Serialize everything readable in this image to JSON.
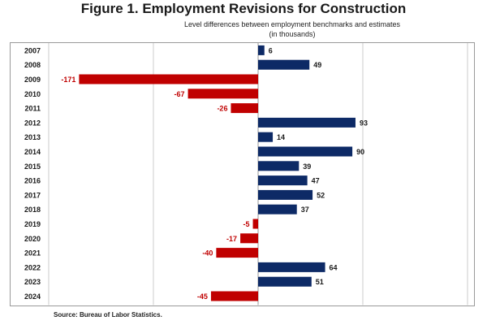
{
  "title": "Figure 1. Employment Revisions for Construction",
  "subtitle_line1": "Level differences between employment benchmarks and estimates",
  "subtitle_line2": "(in thousands)",
  "source": "Source: Bureau of Labor Statistics.",
  "colors": {
    "positive": "#0d2a66",
    "negative": "#c00000",
    "label_negative": "#c00000",
    "label_positive": "#1a1a1a",
    "grid": "#bfbfbf",
    "axis": "#7f7f7f"
  },
  "chart_data": {
    "type": "bar",
    "orientation": "horizontal",
    "title": "Figure 1. Employment Revisions for Construction",
    "subtitle": "Level differences between employment benchmarks and estimates (in thousands)",
    "xlabel": "",
    "ylabel": "",
    "xlim": [
      -200,
      200
    ],
    "grid": true,
    "legend": "none",
    "categories": [
      "2007",
      "2008",
      "2009",
      "2010",
      "2011",
      "2012",
      "2013",
      "2014",
      "2015",
      "2016",
      "2017",
      "2018",
      "2019",
      "2020",
      "2021",
      "2022",
      "2023",
      "2024"
    ],
    "values": [
      6,
      49,
      -171,
      -67,
      -26,
      93,
      14,
      90,
      39,
      47,
      52,
      37,
      -5,
      -17,
      -40,
      64,
      51,
      -45
    ]
  }
}
